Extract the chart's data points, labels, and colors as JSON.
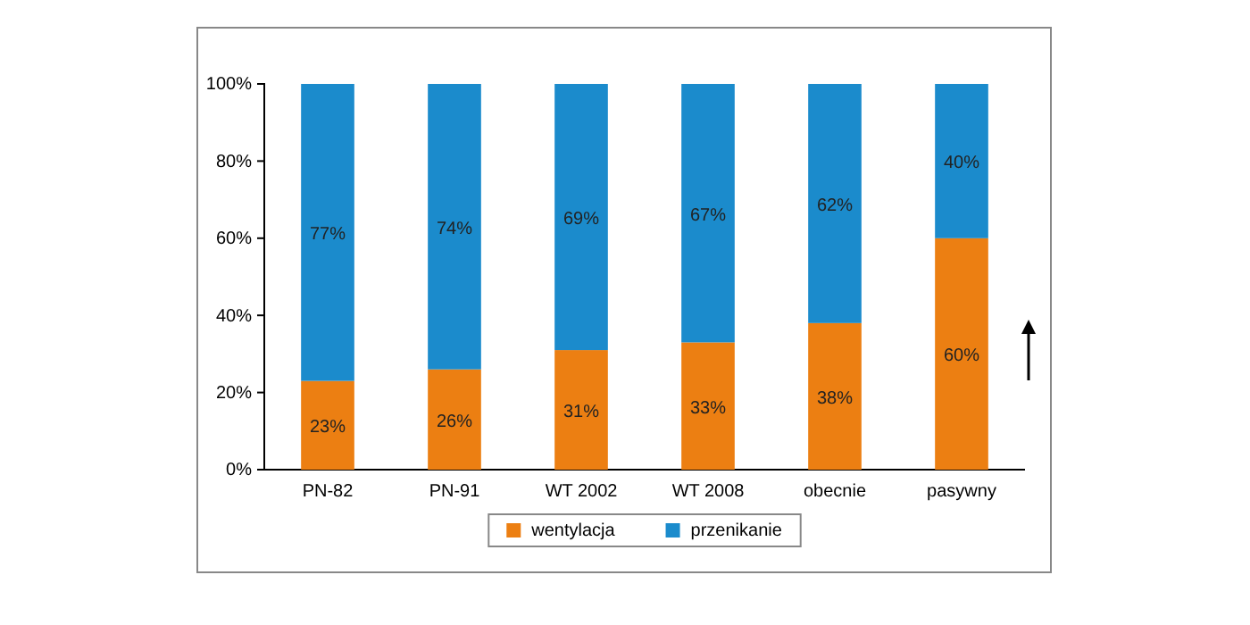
{
  "chart_data": {
    "type": "bar",
    "stacked": true,
    "categories": [
      "PN-82",
      "PN-91",
      "WT 2002",
      "WT 2008",
      "obecnie",
      "pasywny"
    ],
    "series": [
      {
        "name": "wentylacja",
        "color": "#ec7f12",
        "values": [
          23,
          26,
          31,
          33,
          38,
          60
        ],
        "value_labels": [
          "23%",
          "26%",
          "31%",
          "33%",
          "38%",
          "60%"
        ]
      },
      {
        "name": "przenikanie",
        "color": "#1b8bcc",
        "values": [
          77,
          74,
          69,
          67,
          62,
          40
        ],
        "value_labels": [
          "77%",
          "74%",
          "69%",
          "67%",
          "62%",
          "40%"
        ]
      }
    ],
    "ylim": [
      0,
      100
    ],
    "yticks": [
      {
        "value": 0,
        "label": "0%"
      },
      {
        "value": 20,
        "label": "20%"
      },
      {
        "value": 40,
        "label": "40%"
      },
      {
        "value": 60,
        "label": "60%"
      },
      {
        "value": 80,
        "label": "80%"
      },
      {
        "value": 100,
        "label": "100%"
      }
    ],
    "grid": false,
    "legend": "bottom"
  }
}
